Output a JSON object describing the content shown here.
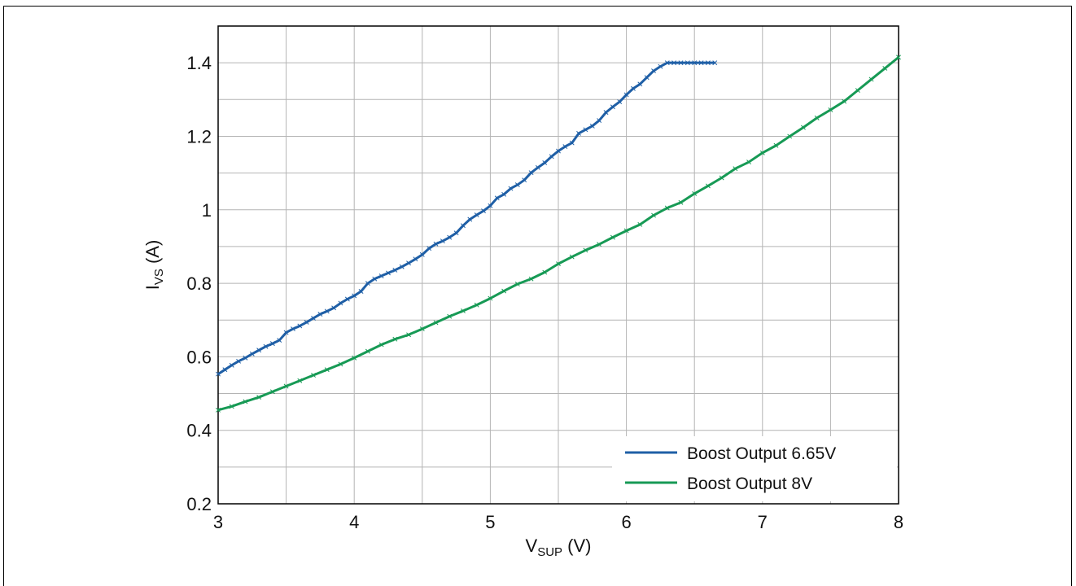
{
  "chart_data": {
    "type": "line",
    "title": "",
    "xlabel": {
      "main": "V",
      "sub": "SUP",
      "unit": " (V)"
    },
    "ylabel": {
      "main": "I",
      "sub": "VS",
      "unit": " (A)"
    },
    "xlim": [
      3,
      8
    ],
    "ylim": [
      0.2,
      1.5
    ],
    "x_ticks": [
      3,
      4,
      5,
      6,
      7,
      8
    ],
    "x_tick_labels": [
      "3",
      "4",
      "5",
      "6",
      "7",
      "8"
    ],
    "x_minor_grid": [
      3.5,
      4.5,
      5.5,
      6.5,
      7.5
    ],
    "y_ticks": [
      0.2,
      0.4,
      0.6,
      0.8,
      1.0,
      1.2,
      1.4
    ],
    "y_tick_labels": [
      "0.2",
      "0.4",
      "0.6",
      "0.8",
      "1",
      "1.2",
      "1.4"
    ],
    "y_minor_grid": [
      0.3,
      0.5,
      0.7,
      0.9,
      1.1,
      1.3
    ],
    "grid": true,
    "legend_position": "bottom-right",
    "series": [
      {
        "name": "Boost Output 6.65V",
        "color": "#1f5fa6",
        "x": [
          3.0,
          3.05,
          3.1,
          3.15,
          3.2,
          3.25,
          3.3,
          3.35,
          3.4,
          3.45,
          3.5,
          3.55,
          3.6,
          3.65,
          3.7,
          3.75,
          3.8,
          3.85,
          3.9,
          3.95,
          4.0,
          4.05,
          4.1,
          4.15,
          4.2,
          4.25,
          4.3,
          4.35,
          4.4,
          4.45,
          4.5,
          4.55,
          4.6,
          4.65,
          4.7,
          4.75,
          4.8,
          4.85,
          4.9,
          4.95,
          5.0,
          5.05,
          5.1,
          5.15,
          5.2,
          5.25,
          5.3,
          5.35,
          5.4,
          5.45,
          5.5,
          5.55,
          5.6,
          5.65,
          5.7,
          5.75,
          5.8,
          5.85,
          5.9,
          5.95,
          6.0,
          6.05,
          6.1,
          6.15,
          6.2,
          6.25,
          6.3,
          6.35,
          6.4,
          6.45,
          6.5,
          6.55,
          6.6,
          6.65
        ],
        "y": [
          0.553,
          0.565,
          0.577,
          0.588,
          0.597,
          0.608,
          0.618,
          0.628,
          0.636,
          0.645,
          0.666,
          0.676,
          0.684,
          0.694,
          0.705,
          0.716,
          0.724,
          0.733,
          0.746,
          0.757,
          0.766,
          0.778,
          0.8,
          0.812,
          0.82,
          0.828,
          0.836,
          0.845,
          0.855,
          0.866,
          0.878,
          0.895,
          0.907,
          0.915,
          0.925,
          0.937,
          0.957,
          0.974,
          0.986,
          0.997,
          1.011,
          1.032,
          1.042,
          1.058,
          1.068,
          1.081,
          1.101,
          1.115,
          1.128,
          1.145,
          1.16,
          1.172,
          1.182,
          1.208,
          1.218,
          1.228,
          1.243,
          1.265,
          1.28,
          1.294,
          1.313,
          1.33,
          1.342,
          1.36,
          1.378,
          1.39,
          1.4,
          1.4,
          1.4,
          1.4,
          1.4,
          1.4,
          1.4,
          1.4
        ]
      },
      {
        "name": "Boost Output 8V",
        "color": "#179a55",
        "x": [
          3.0,
          3.1,
          3.2,
          3.3,
          3.4,
          3.5,
          3.6,
          3.7,
          3.8,
          3.9,
          4.0,
          4.1,
          4.2,
          4.3,
          4.4,
          4.5,
          4.6,
          4.7,
          4.8,
          4.9,
          5.0,
          5.1,
          5.2,
          5.3,
          5.4,
          5.5,
          5.6,
          5.7,
          5.8,
          5.9,
          6.0,
          6.1,
          6.2,
          6.3,
          6.4,
          6.5,
          6.6,
          6.7,
          6.8,
          6.9,
          7.0,
          7.1,
          7.2,
          7.3,
          7.4,
          7.5,
          7.6,
          7.7,
          7.8,
          7.9,
          8.0
        ],
        "y": [
          0.455,
          0.465,
          0.478,
          0.49,
          0.505,
          0.52,
          0.535,
          0.55,
          0.565,
          0.58,
          0.597,
          0.615,
          0.633,
          0.648,
          0.66,
          0.676,
          0.693,
          0.71,
          0.725,
          0.741,
          0.759,
          0.779,
          0.798,
          0.812,
          0.83,
          0.853,
          0.872,
          0.89,
          0.906,
          0.925,
          0.943,
          0.96,
          0.985,
          1.005,
          1.02,
          1.044,
          1.065,
          1.087,
          1.112,
          1.13,
          1.155,
          1.175,
          1.2,
          1.224,
          1.25,
          1.272,
          1.295,
          1.325,
          1.355,
          1.385,
          1.415
        ]
      }
    ]
  }
}
